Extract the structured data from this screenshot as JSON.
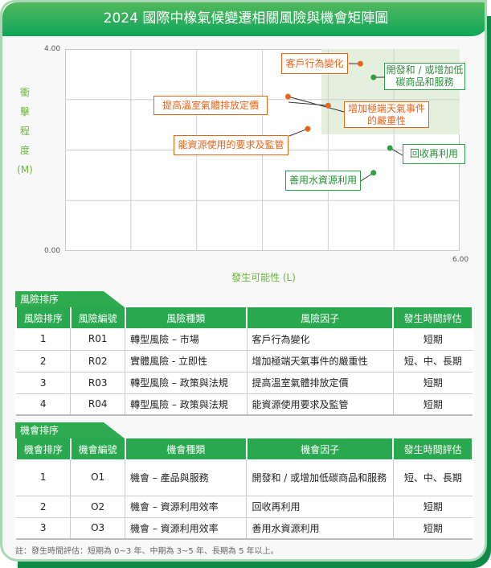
{
  "title": "2024 國際中橡氣候變遷相關風險與機會矩陣圖",
  "chart_data": {
    "type": "scatter",
    "xlabel": "發生可能性 (L)",
    "ylabel": [
      "衝",
      "擊",
      "程",
      "度",
      "(M)"
    ],
    "xlim": [
      0,
      6
    ],
    "ylim": [
      0,
      4
    ],
    "x_tick_labels": [
      "6.00"
    ],
    "y_tick_labels": [
      "4.00",
      "0.00"
    ],
    "grid": true,
    "highlight_region": {
      "x": [
        3.9,
        6
      ],
      "y": [
        2.3,
        4
      ],
      "color": "#e4efdd"
    },
    "series": [
      {
        "color": "#e8641b",
        "points": [
          {
            "label": "客戶行為變化",
            "x": 4.49,
            "y": 3.71
          },
          {
            "label": "增加極端天氣事件的嚴重性",
            "x": 4.0,
            "y": 2.88
          },
          {
            "label": "提高溫室氣體排放定價",
            "x": 3.39,
            "y": 3.06
          },
          {
            "label": "能資源使用的要求及監管",
            "x": 3.69,
            "y": 2.42
          }
        ]
      },
      {
        "color": "#2ea043",
        "points": [
          {
            "label": "開發和 / 或增加低碳商品和服務",
            "x": 4.69,
            "y": 3.44
          },
          {
            "label": "回收再利用",
            "x": 4.94,
            "y": 2.04
          },
          {
            "label": "善用水資源利用",
            "x": 4.69,
            "y": 1.55
          }
        ]
      }
    ]
  },
  "labels": {
    "r1": "客戶行為變化",
    "r2a": "增加極端天氣事件",
    "r2b": "的嚴重性",
    "r3": "提高溫室氣體排放定價",
    "r4": "能資源使用的要求及監管",
    "o1a": "開發和 / 或增加低",
    "o1b": "碳商品和服務",
    "o2": "回收再利用",
    "o3": "善用水資源利用"
  },
  "risk": {
    "tab": "風險排序",
    "headers": [
      "風險排序",
      "風險編號",
      "風險種類",
      "風險因子",
      "發生時間評估"
    ],
    "rows": [
      [
        "1",
        "R01",
        "轉型風險 – 市場",
        "客戶行為變化",
        "短期"
      ],
      [
        "2",
        "R02",
        "實體風險 - 立即性",
        "增加極端天氣事件的嚴重性",
        "短、中、長期"
      ],
      [
        "3",
        "R03",
        "轉型風險 – 政策與法規",
        "提高溫室氣體排放定價",
        "短期"
      ],
      [
        "4",
        "R04",
        "轉型風險 – 政策與法規",
        "能資源使用要求及監管",
        "短期"
      ]
    ]
  },
  "opp": {
    "tab": "機會排序",
    "headers": [
      "機會排序",
      "機會編號",
      "機會種類",
      "機會因子",
      "發生時間評估"
    ],
    "rows": [
      [
        "1",
        "O1",
        "機會 – 產品與服務",
        "開發和 / 或增加低碳商品和服務",
        "短、中、長期"
      ],
      [
        "2",
        "O2",
        "機會 – 資源利用效率",
        "回收再利用",
        "短期"
      ],
      [
        "3",
        "O3",
        "機會 – 資源利用效率",
        "善用水資源利用",
        "短期"
      ]
    ]
  },
  "note": "註：發生時間評估：短期為 0~3 年、中期為 3~5 年、長期為 5 年以上。"
}
